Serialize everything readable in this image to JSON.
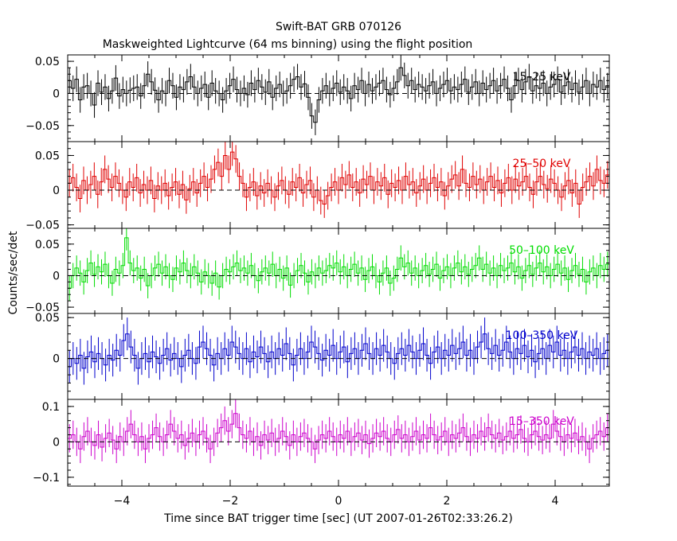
{
  "title": "Swift-BAT GRB 070126",
  "subtitle": "Maskweighted Lightcurve (64 ms binning) using the flight position",
  "ylabel": "Counts/sec/det",
  "xlabel": "Time since BAT trigger time [sec] (UT 2007-01-26T02:33:26.2)",
  "colors": {
    "axes": "#000000",
    "series": [
      "#000000",
      "#e00000",
      "#00dd00",
      "#0000cc",
      "#cc00cc"
    ]
  },
  "chart_data": {
    "type": "line",
    "style": "step-with-error-bars",
    "xlim": [
      -5,
      5
    ],
    "x_ticks": [
      -4,
      -2,
      0,
      2,
      4
    ],
    "x_tick_labels": [
      "−4",
      "−2",
      "0",
      "2",
      "4"
    ],
    "bin_width": 0.064,
    "shared_x_axis": true,
    "grid": false,
    "zero_line": "dashed",
    "panels": [
      {
        "name": "15–25 keV",
        "color": "#000000",
        "ylim": [
          -0.075,
          0.06
        ],
        "y_ticks": [
          -0.05,
          0,
          0.05
        ],
        "y_tick_labels": [
          "−0.05",
          "0",
          "0.05"
        ],
        "error": 0.02,
        "values": [
          0.02,
          0.008,
          0.022,
          -0.01,
          0.01,
          0.012,
          0.0,
          -0.018,
          0.016,
          0.002,
          0.01,
          -0.008,
          0.004,
          0.024,
          -0.004,
          0.006,
          0.0,
          0.005,
          0.008,
          0.01,
          -0.004,
          0.012,
          0.03,
          0.018,
          0.005,
          -0.01,
          0.004,
          0.0,
          0.02,
          0.012,
          -0.006,
          0.01,
          0.006,
          0.018,
          0.026,
          0.01,
          0.0,
          0.008,
          0.014,
          -0.006,
          0.016,
          0.004,
          0.0,
          -0.01,
          0.004,
          0.012,
          0.022,
          0.006,
          0.0,
          0.008,
          -0.002,
          0.016,
          0.006,
          0.02,
          0.01,
          0.002,
          0.018,
          -0.006,
          0.008,
          0.014,
          0.0,
          0.004,
          0.012,
          0.022,
          0.026,
          0.01,
          0.015,
          -0.006,
          -0.035,
          -0.045,
          -0.01,
          0.004,
          0.012,
          0.0,
          0.008,
          0.016,
          0.002,
          0.01,
          0.004,
          -0.008,
          0.012,
          0.006,
          0.02,
          0.0,
          0.014,
          0.004,
          0.01,
          0.016,
          0.02,
          0.006,
          -0.002,
          0.008,
          0.018,
          0.04,
          0.028,
          0.012,
          0.02,
          0.006,
          0.014,
          0.01,
          0.004,
          0.012,
          0.018,
          0.0,
          0.008,
          0.014,
          0.02,
          0.004,
          0.01,
          0.006,
          0.014,
          0.022,
          0.002,
          0.01,
          0.018,
          0.0,
          0.016,
          0.006,
          0.012,
          0.02,
          0.004,
          0.012,
          0.022,
          0.008,
          -0.01,
          0.012,
          0.02,
          0.006,
          0.018,
          0.026,
          0.004,
          0.012,
          0.008,
          0.016,
          0.0,
          0.01,
          0.014,
          0.022,
          0.002,
          0.012,
          0.018,
          0.006,
          0.016,
          0.002,
          0.01,
          0.02,
          0.0,
          0.014,
          0.01,
          0.02,
          0.006,
          0.012
        ]
      },
      {
        "name": "25–50 keV",
        "color": "#e00000",
        "ylim": [
          -0.055,
          0.07
        ],
        "y_ticks": [
          -0.05,
          0,
          0.05
        ],
        "y_tick_labels": [
          "−0.05",
          "0",
          "0.05"
        ],
        "error": 0.02,
        "values": [
          0.01,
          0.018,
          0.004,
          -0.012,
          0.014,
          0.0,
          0.008,
          0.02,
          -0.006,
          0.012,
          0.03,
          0.016,
          0.004,
          0.02,
          0.01,
          0.0,
          -0.01,
          0.012,
          0.004,
          0.018,
          -0.004,
          0.008,
          0.0,
          0.014,
          -0.012,
          0.006,
          0.0,
          0.01,
          -0.008,
          0.004,
          0.012,
          -0.006,
          0.008,
          -0.014,
          0.002,
          0.012,
          -0.004,
          0.01,
          0.02,
          0.004,
          0.016,
          0.03,
          0.04,
          0.02,
          0.05,
          0.03,
          0.055,
          0.045,
          0.02,
          0.01,
          -0.01,
          0.004,
          0.012,
          -0.008,
          0.006,
          -0.004,
          0.01,
          0.0,
          -0.01,
          0.006,
          0.014,
          0.0,
          -0.006,
          0.012,
          0.004,
          0.018,
          -0.004,
          0.008,
          0.014,
          -0.01,
          0.0,
          -0.015,
          -0.02,
          -0.008,
          0.004,
          0.012,
          0.0,
          0.018,
          0.008,
          0.022,
          0.004,
          0.012,
          -0.004,
          0.016,
          0.008,
          0.02,
          0.0,
          0.012,
          0.006,
          0.018,
          -0.006,
          0.01,
          0.004,
          0.014,
          0.0,
          0.02,
          0.008,
          0.012,
          -0.004,
          0.006,
          0.016,
          0.0,
          0.01,
          0.018,
          0.004,
          0.012,
          -0.008,
          0.006,
          0.016,
          0.022,
          0.006,
          0.03,
          0.01,
          0.004,
          0.02,
          0.008,
          0.016,
          0.0,
          0.012,
          0.02,
          0.004,
          0.014,
          -0.004,
          0.01,
          0.018,
          0.0,
          0.016,
          0.006,
          0.012,
          0.02,
          0.004,
          -0.006,
          0.012,
          0.02,
          0.008,
          0.002,
          0.016,
          0.01,
          0.0,
          -0.01,
          0.006,
          0.014,
          -0.004,
          0.01,
          -0.02,
          0.004,
          0.012,
          0.02,
          0.006,
          0.03,
          0.014,
          0.01,
          0.022
        ]
      },
      {
        "name": "50–100 keV",
        "color": "#00dd00",
        "ylim": [
          -0.06,
          0.075
        ],
        "y_ticks": [
          -0.05,
          0,
          0.05
        ],
        "y_tick_labels": [
          "−0.05",
          "0",
          "0.05"
        ],
        "error": 0.02,
        "values": [
          -0.02,
          0.0,
          0.012,
          0.004,
          -0.01,
          0.008,
          0.02,
          0.002,
          0.014,
          0.006,
          0.018,
          0.0,
          -0.012,
          0.01,
          0.004,
          0.016,
          0.06,
          0.02,
          0.008,
          0.012,
          -0.004,
          0.01,
          -0.016,
          0.0,
          0.012,
          0.018,
          0.004,
          0.014,
          0.0,
          -0.006,
          0.012,
          0.006,
          0.02,
          0.008,
          0.0,
          0.014,
          0.004,
          -0.01,
          0.006,
          0.0,
          -0.012,
          0.004,
          -0.018,
          0.0,
          0.01,
          0.006,
          0.014,
          0.02,
          0.008,
          0.012,
          0.004,
          0.016,
          0.0,
          -0.008,
          0.006,
          0.012,
          0.004,
          0.018,
          0.0,
          0.01,
          -0.004,
          0.012,
          -0.015,
          0.0,
          0.008,
          0.016,
          0.004,
          -0.01,
          0.006,
          0.0,
          0.012,
          0.004,
          0.008,
          0.016,
          0.012,
          0.02,
          0.006,
          0.014,
          0.0,
          0.01,
          0.018,
          0.004,
          0.012,
          -0.006,
          0.008,
          0.014,
          0.0,
          -0.01,
          0.004,
          0.012,
          -0.012,
          -0.004,
          0.01,
          0.028,
          0.014,
          0.02,
          0.004,
          0.012,
          0.0,
          0.008,
          0.016,
          0.002,
          0.01,
          0.018,
          -0.004,
          0.008,
          0.014,
          0.0,
          0.012,
          0.02,
          0.006,
          0.014,
          0.002,
          0.01,
          0.016,
          0.028,
          0.01,
          0.018,
          0.004,
          0.012,
          0.0,
          0.016,
          0.008,
          0.012,
          0.02,
          0.006,
          0.014,
          -0.004,
          0.008,
          0.016,
          0.002,
          0.012,
          0.02,
          0.006,
          0.014,
          0.0,
          0.01,
          0.018,
          0.004,
          0.012,
          -0.006,
          0.008,
          0.016,
          0.002,
          0.01,
          -0.01,
          0.006,
          0.012,
          0.0,
          0.016,
          0.01,
          0.018
        ]
      },
      {
        "name": "100–350 keV",
        "color": "#0000cc",
        "ylim": [
          -0.05,
          0.055
        ],
        "y_ticks": [
          0,
          0.05
        ],
        "y_tick_labels": [
          "0",
          "0.05"
        ],
        "error": 0.02,
        "values": [
          -0.01,
          0.0,
          -0.006,
          0.004,
          -0.012,
          0.002,
          0.008,
          -0.004,
          0.006,
          0.0,
          -0.008,
          0.004,
          -0.002,
          0.01,
          0.004,
          0.022,
          0.03,
          0.014,
          0.004,
          -0.012,
          0.0,
          0.006,
          -0.004,
          0.008,
          0.002,
          -0.006,
          0.004,
          0.012,
          -0.002,
          0.006,
          0.0,
          -0.01,
          0.004,
          0.01,
          0.0,
          -0.006,
          0.014,
          0.02,
          0.012,
          0.004,
          -0.008,
          0.006,
          0.0,
          0.012,
          0.004,
          0.02,
          0.014,
          0.006,
          0.0,
          0.012,
          -0.004,
          0.008,
          0.002,
          0.014,
          0.006,
          -0.004,
          0.008,
          0.0,
          0.012,
          0.004,
          0.018,
          0.006,
          -0.008,
          0.004,
          0.012,
          0.0,
          0.008,
          0.02,
          0.014,
          0.006,
          -0.002,
          0.01,
          0.004,
          0.016,
          0.0,
          0.008,
          0.014,
          -0.004,
          0.006,
          0.012,
          0.0,
          0.01,
          0.018,
          0.006,
          0.0,
          0.012,
          0.004,
          0.016,
          0.008,
          0.0,
          -0.006,
          0.006,
          0.012,
          0.004,
          0.016,
          0.008,
          0.0,
          0.01,
          0.018,
          0.004,
          -0.006,
          0.008,
          0.014,
          0.0,
          0.01,
          0.004,
          0.016,
          0.006,
          0.012,
          0.02,
          0.004,
          0.01,
          0.0,
          0.014,
          0.02,
          0.03,
          0.012,
          0.006,
          0.016,
          0.004,
          0.01,
          0.02,
          0.008,
          0.0,
          0.012,
          0.006,
          0.016,
          0.002,
          0.01,
          -0.004,
          0.006,
          0.012,
          0.0,
          0.016,
          0.008,
          0.02,
          0.004,
          0.01,
          0.0,
          0.008,
          0.014,
          0.004,
          0.012,
          0.0,
          0.008,
          0.004,
          0.012,
          0.0,
          0.006,
          0.01
        ]
      },
      {
        "name": "15–350 keV",
        "color": "#cc00cc",
        "ylim": [
          -0.125,
          0.12
        ],
        "y_ticks": [
          -0.1,
          0,
          0.1
        ],
        "y_tick_labels": [
          "−0.1",
          "0",
          "0.1"
        ],
        "error": 0.04,
        "values": [
          0.01,
          0.02,
          0.0,
          -0.02,
          0.015,
          0.03,
          0.0,
          -0.01,
          0.02,
          -0.015,
          0.01,
          0.025,
          0.005,
          -0.02,
          0.015,
          0.0,
          0.03,
          0.05,
          0.02,
          0.0,
          0.015,
          -0.02,
          0.01,
          0.02,
          0.04,
          0.015,
          0.0,
          0.02,
          0.05,
          0.03,
          0.01,
          0.02,
          -0.01,
          0.01,
          0.025,
          0.0,
          0.02,
          0.03,
          0.01,
          -0.02,
          0.0,
          0.025,
          0.04,
          0.06,
          0.03,
          0.05,
          0.08,
          0.04,
          0.02,
          0.01,
          0.03,
          0.0,
          0.015,
          -0.01,
          0.02,
          0.005,
          0.025,
          0.0,
          0.01,
          0.03,
          0.015,
          -0.01,
          0.02,
          0.0,
          0.015,
          0.025,
          0.01,
          0.0,
          -0.02,
          0.005,
          0.02,
          0.01,
          0.03,
          0.015,
          0.0,
          0.02,
          0.01,
          0.03,
          0.0,
          0.015,
          0.025,
          0.005,
          0.02,
          -0.005,
          0.01,
          0.025,
          0.015,
          0.03,
          0.01,
          0.0,
          0.02,
          0.035,
          0.01,
          0.02,
          0.0,
          0.015,
          0.03,
          0.005,
          0.02,
          0.01,
          0.04,
          0.02,
          0.005,
          0.015,
          0.03,
          0.0,
          0.02,
          0.01,
          0.025,
          0.04,
          0.015,
          0.0,
          0.02,
          0.01,
          0.03,
          0.015,
          0.04,
          0.02,
          0.01,
          0.025,
          0.005,
          0.015,
          0.03,
          0.01,
          0.02,
          0.035,
          0.01,
          0.0,
          0.02,
          0.03,
          0.015,
          0.005,
          0.02,
          0.01,
          0.05,
          0.03,
          0.015,
          0.0,
          0.02,
          0.01,
          0.025,
          0.005,
          0.015,
          0.0,
          -0.02,
          0.01,
          0.02,
          0.03,
          0.015,
          0.04
        ]
      }
    ]
  }
}
